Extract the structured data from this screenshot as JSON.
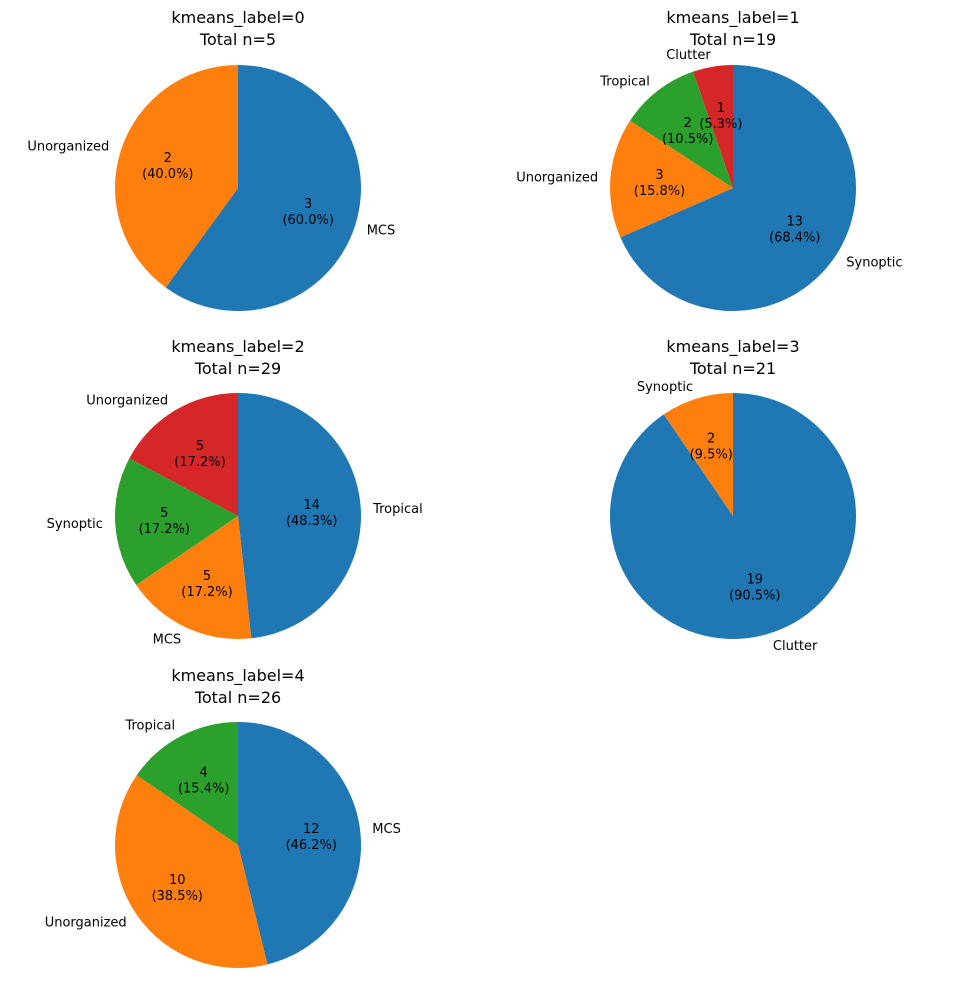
{
  "figure": {
    "name": "kmeans label composition pie charts"
  },
  "colors": {
    "blue": "#1f77b4",
    "orange": "#ff7f0e",
    "green": "#2ca02c",
    "red": "#d62728"
  },
  "chart_data": [
    {
      "type": "pie",
      "title_line1": "kmeans_label=0",
      "title_line2": "Total n=5",
      "slices": [
        {
          "label": "MCS",
          "value": 3,
          "percent": "60.0%",
          "color": "#1f77b4"
        },
        {
          "label": "Unorganized",
          "value": 2,
          "percent": "40.0%",
          "color": "#ff7f0e"
        }
      ]
    },
    {
      "type": "pie",
      "title_line1": "kmeans_label=1",
      "title_line2": "Total n=19",
      "slices": [
        {
          "label": "Synoptic",
          "value": 13,
          "percent": "68.4%",
          "color": "#1f77b4"
        },
        {
          "label": "Unorganized",
          "value": 3,
          "percent": "15.8%",
          "color": "#ff7f0e"
        },
        {
          "label": "Tropical",
          "value": 2,
          "percent": "10.5%",
          "color": "#2ca02c"
        },
        {
          "label": "Clutter",
          "value": 1,
          "percent": "5.3%",
          "color": "#d62728"
        }
      ]
    },
    {
      "type": "pie",
      "title_line1": "kmeans_label=2",
      "title_line2": "Total n=29",
      "slices": [
        {
          "label": "Tropical",
          "value": 14,
          "percent": "48.3%",
          "color": "#1f77b4"
        },
        {
          "label": "MCS",
          "value": 5,
          "percent": "17.2%",
          "color": "#ff7f0e"
        },
        {
          "label": "Synoptic",
          "value": 5,
          "percent": "17.2%",
          "color": "#2ca02c"
        },
        {
          "label": "Unorganized",
          "value": 5,
          "percent": "17.2%",
          "color": "#d62728"
        }
      ]
    },
    {
      "type": "pie",
      "title_line1": "kmeans_label=3",
      "title_line2": "Total n=21",
      "slices": [
        {
          "label": "Clutter",
          "value": 19,
          "percent": "90.5%",
          "color": "#1f77b4"
        },
        {
          "label": "Synoptic",
          "value": 2,
          "percent": "9.5%",
          "color": "#ff7f0e"
        }
      ]
    },
    {
      "type": "pie",
      "title_line1": "kmeans_label=4",
      "title_line2": "Total n=26",
      "slices": [
        {
          "label": "MCS",
          "value": 12,
          "percent": "46.2%",
          "color": "#1f77b4"
        },
        {
          "label": "Unorganized",
          "value": 10,
          "percent": "38.5%",
          "color": "#ff7f0e"
        },
        {
          "label": "Tropical",
          "value": 4,
          "percent": "15.4%",
          "color": "#2ca02c"
        }
      ]
    }
  ]
}
